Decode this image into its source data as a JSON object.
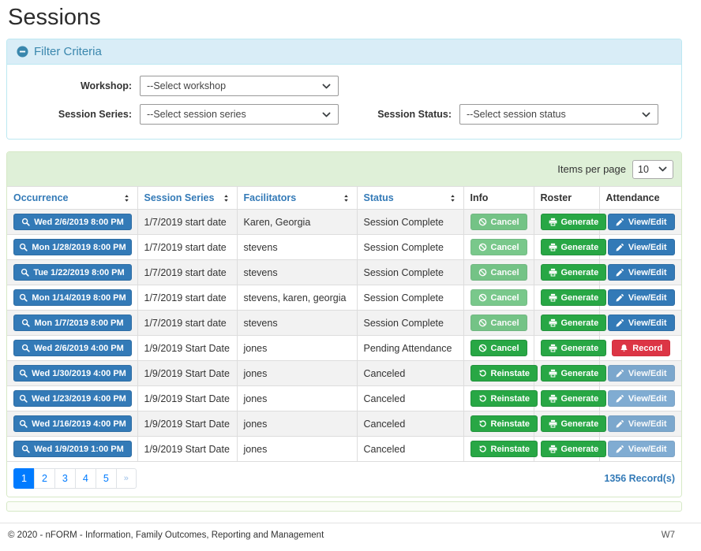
{
  "page": {
    "title": "Sessions"
  },
  "colors": {
    "primary_blue": "#337ab7",
    "success_green": "#28a745",
    "danger_red": "#dc3545",
    "pagination_blue": "#007bff",
    "info_panel_blue": "#d9edf7",
    "success_panel_green": "#dff0d8"
  },
  "filter": {
    "heading": "Filter Criteria",
    "workshop_label": "Workshop:",
    "workshop_value": "--Select workshop",
    "session_series_label": "Session Series:",
    "session_series_value": "--Select session series",
    "session_status_label": "Session Status:",
    "session_status_value": "--Select session status"
  },
  "table": {
    "items_per_page_label": "Items per page",
    "items_per_page_value": "10",
    "columns": [
      {
        "label": "Occurrence",
        "sortable": true
      },
      {
        "label": "Session Series",
        "sortable": true
      },
      {
        "label": "Facilitators",
        "sortable": true
      },
      {
        "label": "Status",
        "sortable": true
      },
      {
        "label": "Info",
        "sortable": false
      },
      {
        "label": "Roster",
        "sortable": false
      },
      {
        "label": "Attendance",
        "sortable": false
      }
    ],
    "rows": [
      {
        "occurrence": "Wed 2/6/2019 8:00 PM",
        "session_series": "1/7/2019 start date",
        "facilitators": "Karen, Georgia",
        "status": "Session Complete",
        "info_button": {
          "label": "Cancel",
          "icon": "ban-icon",
          "disabled": true
        },
        "roster_button": {
          "label": "Generate",
          "icon": "printer-icon",
          "disabled": false
        },
        "attendance_button": {
          "label": "View/Edit",
          "icon": "pencil-icon",
          "style": "primary",
          "disabled": false
        }
      },
      {
        "occurrence": "Mon 1/28/2019 8:00 PM",
        "session_series": "1/7/2019 start date",
        "facilitators": "stevens",
        "status": "Session Complete",
        "info_button": {
          "label": "Cancel",
          "icon": "ban-icon",
          "disabled": true
        },
        "roster_button": {
          "label": "Generate",
          "icon": "printer-icon",
          "disabled": false
        },
        "attendance_button": {
          "label": "View/Edit",
          "icon": "pencil-icon",
          "style": "primary",
          "disabled": false
        }
      },
      {
        "occurrence": "Tue 1/22/2019 8:00 PM",
        "session_series": "1/7/2019 start date",
        "facilitators": "stevens",
        "status": "Session Complete",
        "info_button": {
          "label": "Cancel",
          "icon": "ban-icon",
          "disabled": true
        },
        "roster_button": {
          "label": "Generate",
          "icon": "printer-icon",
          "disabled": false
        },
        "attendance_button": {
          "label": "View/Edit",
          "icon": "pencil-icon",
          "style": "primary",
          "disabled": false
        }
      },
      {
        "occurrence": "Mon 1/14/2019 8:00 PM",
        "session_series": "1/7/2019 start date",
        "facilitators": "stevens, karen, georgia",
        "status": "Session Complete",
        "info_button": {
          "label": "Cancel",
          "icon": "ban-icon",
          "disabled": true
        },
        "roster_button": {
          "label": "Generate",
          "icon": "printer-icon",
          "disabled": false
        },
        "attendance_button": {
          "label": "View/Edit",
          "icon": "pencil-icon",
          "style": "primary",
          "disabled": false
        }
      },
      {
        "occurrence": "Mon 1/7/2019 8:00 PM",
        "session_series": "1/7/2019 start date",
        "facilitators": "stevens",
        "status": "Session Complete",
        "info_button": {
          "label": "Cancel",
          "icon": "ban-icon",
          "disabled": true
        },
        "roster_button": {
          "label": "Generate",
          "icon": "printer-icon",
          "disabled": false
        },
        "attendance_button": {
          "label": "View/Edit",
          "icon": "pencil-icon",
          "style": "primary",
          "disabled": false
        }
      },
      {
        "occurrence": "Wed 2/6/2019 4:00 PM",
        "session_series": "1/9/2019 Start Date",
        "facilitators": "jones",
        "status": "Pending Attendance",
        "info_button": {
          "label": "Cancel",
          "icon": "ban-icon",
          "disabled": false
        },
        "roster_button": {
          "label": "Generate",
          "icon": "printer-icon",
          "disabled": false
        },
        "attendance_button": {
          "label": "Record",
          "icon": "bell-icon",
          "style": "danger",
          "disabled": false
        }
      },
      {
        "occurrence": "Wed 1/30/2019 4:00 PM",
        "session_series": "1/9/2019 Start Date",
        "facilitators": "jones",
        "status": "Canceled",
        "info_button": {
          "label": "Reinstate",
          "icon": "undo-icon",
          "disabled": false
        },
        "roster_button": {
          "label": "Generate",
          "icon": "printer-icon",
          "disabled": false
        },
        "attendance_button": {
          "label": "View/Edit",
          "icon": "pencil-icon",
          "style": "primary",
          "disabled": true
        }
      },
      {
        "occurrence": "Wed 1/23/2019 4:00 PM",
        "session_series": "1/9/2019 Start Date",
        "facilitators": "jones",
        "status": "Canceled",
        "info_button": {
          "label": "Reinstate",
          "icon": "undo-icon",
          "disabled": false
        },
        "roster_button": {
          "label": "Generate",
          "icon": "printer-icon",
          "disabled": false
        },
        "attendance_button": {
          "label": "View/Edit",
          "icon": "pencil-icon",
          "style": "primary",
          "disabled": true
        }
      },
      {
        "occurrence": "Wed 1/16/2019 4:00 PM",
        "session_series": "1/9/2019 Start Date",
        "facilitators": "jones",
        "status": "Canceled",
        "info_button": {
          "label": "Reinstate",
          "icon": "undo-icon",
          "disabled": false
        },
        "roster_button": {
          "label": "Generate",
          "icon": "printer-icon",
          "disabled": false
        },
        "attendance_button": {
          "label": "View/Edit",
          "icon": "pencil-icon",
          "style": "primary",
          "disabled": true
        }
      },
      {
        "occurrence": "Wed 1/9/2019 1:00 PM",
        "session_series": "1/9/2019 Start Date",
        "facilitators": "jones",
        "status": "Canceled",
        "info_button": {
          "label": "Reinstate",
          "icon": "undo-icon",
          "disabled": false
        },
        "roster_button": {
          "label": "Generate",
          "icon": "printer-icon",
          "disabled": false
        },
        "attendance_button": {
          "label": "View/Edit",
          "icon": "pencil-icon",
          "style": "primary",
          "disabled": true
        }
      }
    ],
    "pagination": {
      "pages": [
        "1",
        "2",
        "3",
        "4",
        "5"
      ],
      "active_page": "1",
      "next_label": "»"
    },
    "records_text": "1356 Record(s)"
  },
  "footer": {
    "copyright": "© 2020 - nFORM - Information, Family Outcomes, Reporting and Management",
    "environment": "W7"
  }
}
